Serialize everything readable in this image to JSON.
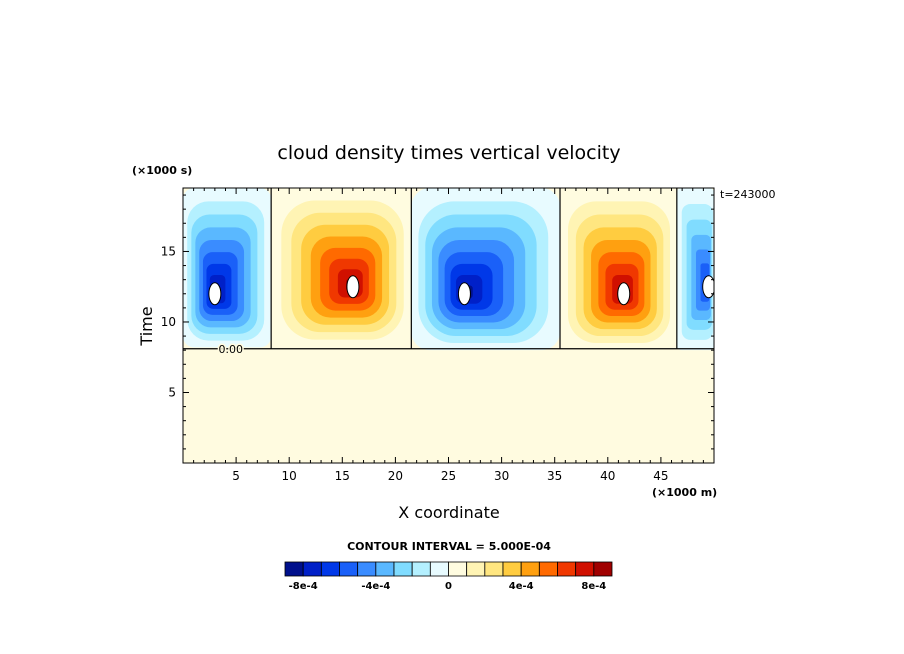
{
  "chart_data": {
    "type": "heatmap",
    "title": "cloud density times vertical velocity",
    "xlabel": "X coordinate",
    "ylabel": "Time",
    "x_unit": "(×1000 m)",
    "y_unit": "(×1000 s)",
    "time_label": "t=243000",
    "xlim": [
      0,
      50
    ],
    "ylim": [
      0,
      19.5
    ],
    "x_ticks": [
      5,
      10,
      15,
      20,
      25,
      30,
      35,
      40,
      45
    ],
    "y_ticks": [
      5,
      10,
      15
    ],
    "x_tick_labels": [
      "5",
      "10",
      "15",
      "20",
      "25",
      "30",
      "35",
      "40",
      "45"
    ],
    "y_tick_labels": [
      "5",
      "10",
      "15"
    ],
    "contour_label": "0.00",
    "contour_interval_text": "CONTOUR INTERVAL = 5.000E-04",
    "colorbar": {
      "colors": [
        "#00108c",
        "#0020c8",
        "#0038e8",
        "#1a60f8",
        "#3a8cff",
        "#5ab8ff",
        "#80dcff",
        "#b4f0ff",
        "#e8fbff",
        "#fffce0",
        "#fff4b4",
        "#ffe680",
        "#ffcc40",
        "#ffa010",
        "#ff6a00",
        "#f03800",
        "#d01000",
        "#a00000"
      ],
      "tick_values": [
        -0.0008,
        -0.0004,
        0,
        0.0004,
        0.0008
      ],
      "tick_labels": [
        "-8e-4",
        "-4e-4",
        "0",
        "4e-4",
        "8e-4"
      ]
    },
    "background_color": "#fffbe0",
    "cells": [
      {
        "sign": "negative",
        "x_range": [
          0,
          8.3
        ],
        "t_range": [
          8.2,
          19.5
        ],
        "peak": -0.0009,
        "peak_x": 3.0,
        "peak_t": 12.0
      },
      {
        "sign": "positive",
        "x_range": [
          8.3,
          21.5
        ],
        "t_range": [
          8.2,
          19.5
        ],
        "peak": 0.0009,
        "peak_x": 16.0,
        "peak_t": 12.5
      },
      {
        "sign": "negative",
        "x_range": [
          21.5,
          35.5
        ],
        "t_range": [
          8.0,
          19.5
        ],
        "peak": -0.0009,
        "peak_x": 26.5,
        "peak_t": 12.0
      },
      {
        "sign": "positive",
        "x_range": [
          35.5,
          46.5
        ],
        "t_range": [
          8.0,
          19.5
        ],
        "peak": 0.0009,
        "peak_x": 41.5,
        "peak_t": 12.0
      },
      {
        "sign": "negative",
        "x_range": [
          46.5,
          50
        ],
        "t_range": [
          8.0,
          19.5
        ],
        "peak": -0.0007,
        "peak_x": 49.5,
        "peak_t": 12.5
      }
    ]
  }
}
